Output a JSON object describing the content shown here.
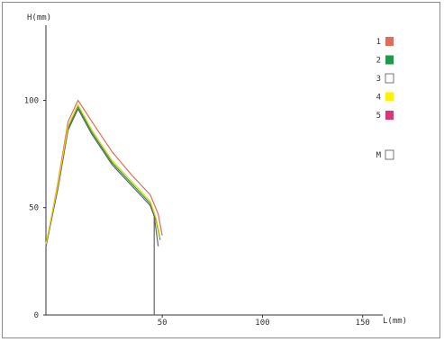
{
  "chart_data": {
    "type": "line",
    "ylabel": "H(mm)",
    "xlabel": "L(mm)",
    "xlim": [
      -8,
      160
    ],
    "ylim": [
      0,
      135
    ],
    "xticks": [
      {
        "value": 50,
        "label": "50"
      },
      {
        "value": 100,
        "label": "100"
      },
      {
        "value": 150,
        "label": "150"
      }
    ],
    "yticks": [
      {
        "value": 0,
        "label": "0"
      },
      {
        "value": 50,
        "label": "50"
      },
      {
        "value": 100,
        "label": "100"
      }
    ],
    "grid": false,
    "legend_position": "right",
    "series": [
      {
        "name": "1",
        "color": "#e06c5a",
        "x": [
          -8,
          -2,
          3,
          8,
          15,
          25,
          35,
          44,
          48,
          50
        ],
        "y": [
          32,
          62,
          90,
          100,
          90,
          76,
          65,
          56,
          47,
          37
        ]
      },
      {
        "name": "2",
        "color": "#1e9a4a",
        "x": [
          -8,
          -2,
          3,
          8,
          15,
          25,
          35,
          44,
          47,
          49
        ],
        "y": [
          32,
          60,
          87,
          97,
          85,
          71,
          61,
          52,
          44,
          35
        ]
      },
      {
        "name": "3",
        "color": "#666666",
        "x": [
          -8,
          -2,
          3,
          8,
          15,
          25,
          35,
          44,
          46,
          46,
          46,
          48
        ],
        "y": [
          32,
          59,
          86,
          96,
          84,
          70,
          60,
          51,
          46,
          0,
          46,
          32
        ]
      },
      {
        "name": "4",
        "color": "#e6d400",
        "x": [
          -8,
          -2,
          3,
          8,
          15,
          25,
          35,
          44,
          47,
          49
        ],
        "y": [
          33,
          61,
          88,
          98,
          86,
          72,
          62,
          53,
          45,
          36
        ]
      },
      {
        "name": "5",
        "color": "#d43a7a",
        "x": [],
        "y": []
      }
    ],
    "legend": [
      {
        "label": "1",
        "color": "#e06c5a",
        "filled": true
      },
      {
        "label": "2",
        "color": "#1e9a4a",
        "filled": true
      },
      {
        "label": "3",
        "color": "#ffffff",
        "filled": false
      },
      {
        "label": "4",
        "color": "#fff200",
        "filled": true
      },
      {
        "label": "5",
        "color": "#d43a7a",
        "filled": true
      },
      {
        "label": "M",
        "color": "#ffffff",
        "filled": false
      }
    ]
  }
}
